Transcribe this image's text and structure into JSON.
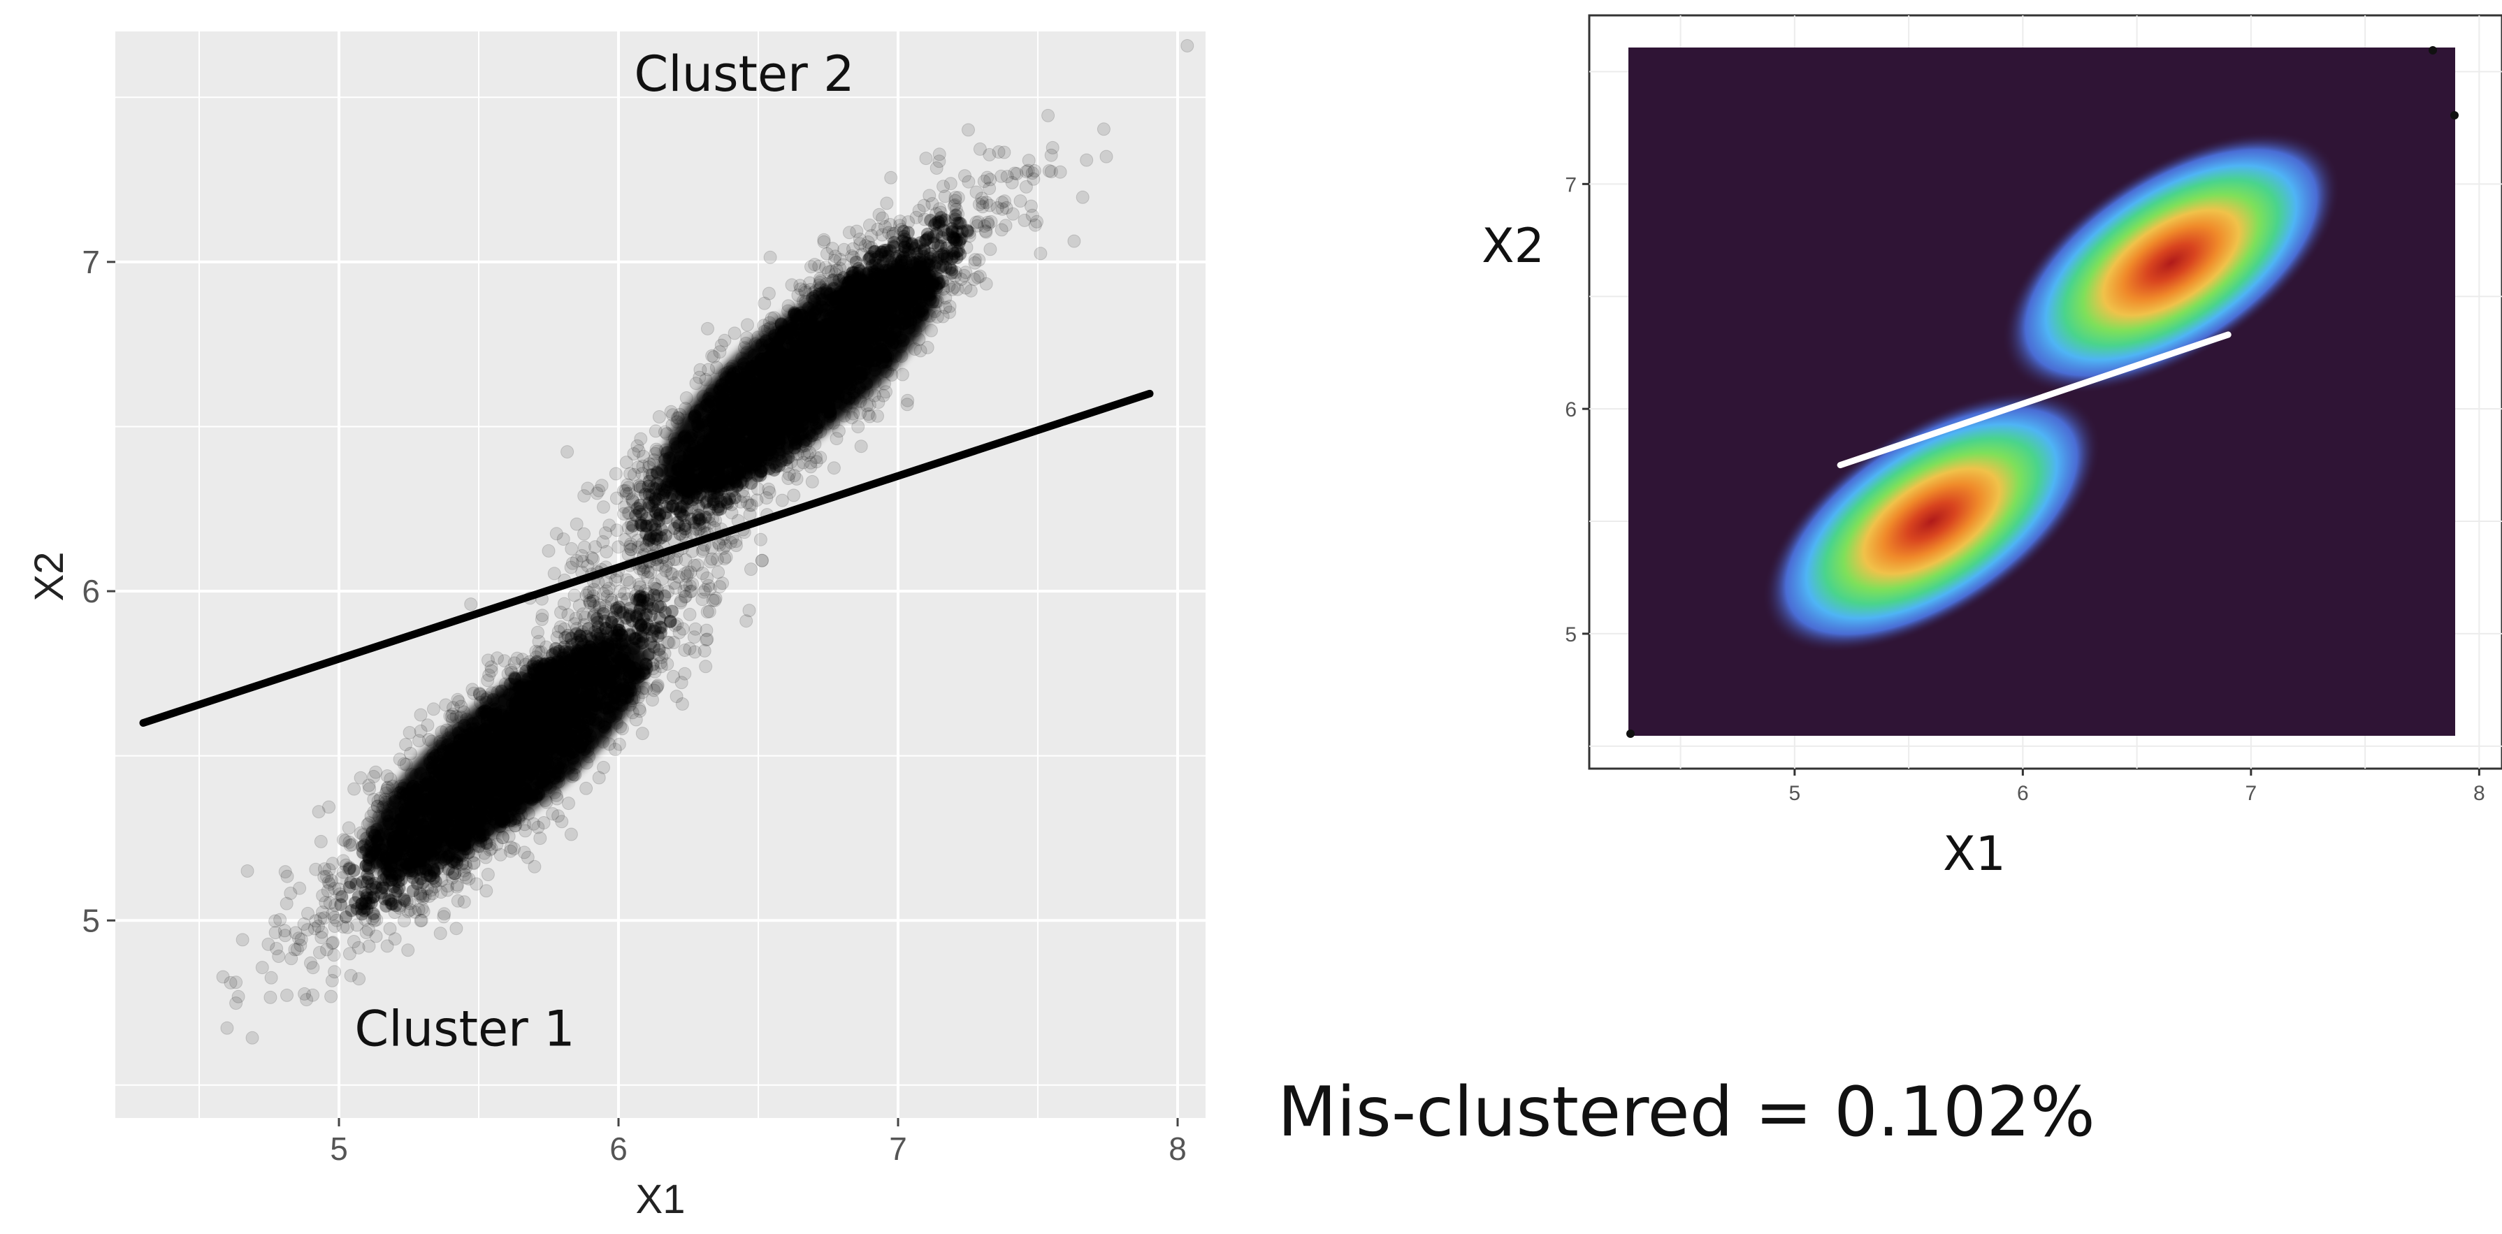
{
  "chart_data": [
    {
      "type": "scatter",
      "xlabel": "X1",
      "ylabel": "X2",
      "xlim": [
        4.2,
        8.1
      ],
      "ylim": [
        4.4,
        7.7
      ],
      "xticks": [
        5,
        6,
        7,
        8
      ],
      "yticks": [
        5,
        6,
        7
      ],
      "grid": true,
      "background": "#ebebeb",
      "point_color": "#000000",
      "clusters": [
        {
          "label": "Cluster 1",
          "center": [
            5.6,
            5.5
          ],
          "spread_major": 0.38,
          "spread_minor": 0.085,
          "angle_deg": 39
        },
        {
          "label": "Cluster 2",
          "center": [
            6.65,
            6.65
          ],
          "spread_major": 0.38,
          "spread_minor": 0.085,
          "angle_deg": 39
        }
      ],
      "annotations": [
        {
          "text": "Cluster 2",
          "x": 6.45,
          "y": 7.52
        },
        {
          "text": "Cluster 1",
          "x": 5.45,
          "y": 4.62
        }
      ],
      "boundary_line": {
        "x": [
          4.3,
          7.9
        ],
        "y": [
          5.6,
          6.6
        ],
        "color": "#000000"
      }
    },
    {
      "type": "heatmap",
      "xlabel": "X1",
      "ylabel": "X2",
      "xlim": [
        4.1,
        8.1
      ],
      "ylim": [
        4.4,
        7.75
      ],
      "xticks": [
        5,
        6,
        7,
        8
      ],
      "yticks": [
        5,
        6,
        7
      ],
      "grid": false,
      "background_color": "#2f1435",
      "colors": [
        "#2f1435",
        "#4f7cf0",
        "#4fb4f5",
        "#4ad48c",
        "#7ee05a",
        "#f0c24a",
        "#f07a2a",
        "#b01a1a"
      ],
      "density_peaks": [
        {
          "center": [
            5.6,
            5.5
          ],
          "angle_deg": 33
        },
        {
          "center": [
            6.65,
            6.65
          ],
          "angle_deg": 33
        }
      ],
      "boundary_line": {
        "x": [
          5.2,
          6.9
        ],
        "y": [
          5.75,
          6.33
        ],
        "color": "#ffffff"
      }
    }
  ],
  "footer": {
    "misclustered_text": "Mis-clustered = 0.102%"
  }
}
